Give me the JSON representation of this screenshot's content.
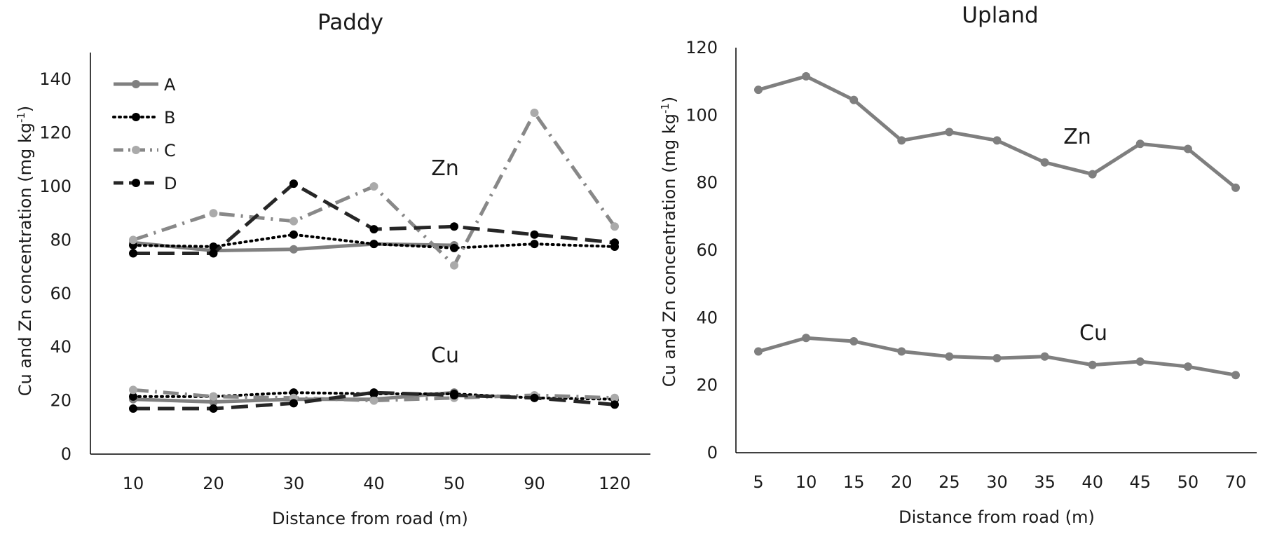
{
  "chart_data": [
    {
      "type": "line",
      "title": "Paddy",
      "xlabel": "Distance from road (m)",
      "ylabel_main": "Cu and Zn concentration (mg kg",
      "ylabel_sup": "-1",
      "ylabel_tail": ")",
      "categories": [
        "10",
        "20",
        "30",
        "40",
        "50",
        "90",
        "120"
      ],
      "ylim": [
        0,
        150
      ],
      "yticks": [
        "0",
        "20",
        "40",
        "60",
        "80",
        "100",
        "120",
        "140"
      ],
      "annotations": {
        "zn": "Zn",
        "cu": "Cu"
      },
      "legend_position": "top-left",
      "series": [
        {
          "name": "A",
          "color": "#808080",
          "style": "solid",
          "marker": "#808080",
          "zn": [
            79,
            76,
            76.5,
            78.5,
            78,
            null,
            null
          ],
          "cu": [
            20.5,
            19.5,
            20.5,
            20.5,
            23,
            null,
            null
          ]
        },
        {
          "name": "B",
          "color": "#000000",
          "style": "dotted",
          "marker": "#000000",
          "zn": [
            78,
            77.5,
            82,
            78.5,
            77,
            78.5,
            77.5
          ],
          "cu": [
            21.5,
            21.5,
            23,
            22.5,
            22.5,
            21,
            20.5
          ]
        },
        {
          "name": "C",
          "color": "#888888",
          "style": "dashdot",
          "marker": "#aaaaaa",
          "zn": [
            80,
            90,
            87,
            100,
            70.5,
            127.5,
            85
          ],
          "cu": [
            24,
            21.5,
            21,
            20,
            21,
            22,
            21
          ]
        },
        {
          "name": "D",
          "color": "#262626",
          "style": "dashed",
          "marker": "#000000",
          "zn": [
            75,
            75,
            101,
            84,
            85,
            82,
            79
          ],
          "cu": [
            17,
            17,
            19,
            23,
            22,
            21,
            18.5
          ]
        }
      ]
    },
    {
      "type": "line",
      "title": "Upland",
      "xlabel": "Distance from road (m)",
      "ylabel_main": "Cu and Zn concentration (mg kg",
      "ylabel_sup": "-1",
      "ylabel_tail": ")",
      "categories": [
        "5",
        "10",
        "15",
        "20",
        "25",
        "30",
        "35",
        "40",
        "45",
        "50",
        "70"
      ],
      "ylim": [
        0,
        120
      ],
      "yticks": [
        "0",
        "20",
        "40",
        "60",
        "80",
        "100",
        "120"
      ],
      "annotations": {
        "zn": "Zn",
        "cu": "Cu"
      },
      "color": "#7f7f7f",
      "series": [
        {
          "name": "Zn",
          "values": [
            107.5,
            111.5,
            104.5,
            92.5,
            95,
            92.5,
            86,
            82.5,
            91.5,
            90,
            78.5
          ]
        },
        {
          "name": "Cu",
          "values": [
            30,
            34,
            33,
            30,
            28.5,
            28,
            28.5,
            26,
            27,
            25.5,
            23
          ]
        }
      ]
    }
  ]
}
